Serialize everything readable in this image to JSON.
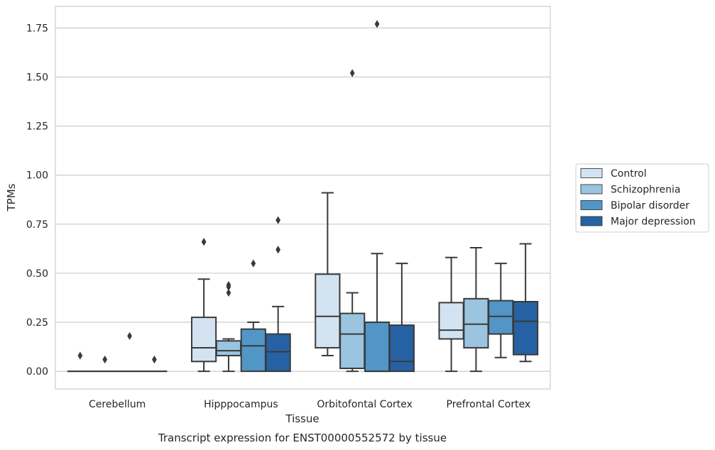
{
  "caption": "Transcript expression for ENST00000552572 by tissue",
  "chart_data": {
    "type": "box",
    "xlabel": "Tissue",
    "ylabel": "TPMs",
    "categories": [
      "Cerebellum",
      "Hipppocampus",
      "Orbitofontal Cortex",
      "Prefrontal Cortex"
    ],
    "ylim": [
      -0.09,
      1.86
    ],
    "yticks": [
      0.0,
      0.25,
      0.5,
      0.75,
      1.0,
      1.25,
      1.5,
      1.75
    ],
    "ytick_labels": [
      "0.00",
      "0.25",
      "0.50",
      "0.75",
      "1.00",
      "1.25",
      "1.50",
      "1.75"
    ],
    "grid": true,
    "legend_position": "right",
    "series": [
      {
        "name": "Control",
        "color": "#d4e3f1",
        "boxes": [
          {
            "q1": 0.0,
            "median": 0.0,
            "q3": 0.0,
            "whislo": 0.0,
            "whishi": 0.0,
            "fliers": [
              0.08
            ]
          },
          {
            "q1": 0.05,
            "median": 0.12,
            "q3": 0.275,
            "whislo": 0.0,
            "whishi": 0.47,
            "fliers": [
              0.66
            ]
          },
          {
            "q1": 0.12,
            "median": 0.28,
            "q3": 0.495,
            "whislo": 0.08,
            "whishi": 0.91,
            "fliers": []
          },
          {
            "q1": 0.165,
            "median": 0.21,
            "q3": 0.35,
            "whislo": 0.0,
            "whishi": 0.58,
            "fliers": []
          }
        ]
      },
      {
        "name": "Schizophrenia",
        "color": "#9ac4df",
        "boxes": [
          {
            "q1": 0.0,
            "median": 0.0,
            "q3": 0.0,
            "whislo": 0.0,
            "whishi": 0.0,
            "fliers": [
              0.06
            ]
          },
          {
            "q1": 0.08,
            "median": 0.105,
            "q3": 0.155,
            "whislo": 0.0,
            "whishi": 0.165,
            "fliers": [
              0.4,
              0.43,
              0.44
            ]
          },
          {
            "q1": 0.015,
            "median": 0.19,
            "q3": 0.295,
            "whislo": 0.0,
            "whishi": 0.4,
            "fliers": [
              1.52
            ]
          },
          {
            "q1": 0.12,
            "median": 0.24,
            "q3": 0.37,
            "whislo": 0.0,
            "whishi": 0.63,
            "fliers": []
          }
        ]
      },
      {
        "name": "Bipolar disorder",
        "color": "#5196c7",
        "boxes": [
          {
            "q1": 0.0,
            "median": 0.0,
            "q3": 0.0,
            "whislo": 0.0,
            "whishi": 0.0,
            "fliers": [
              0.18
            ]
          },
          {
            "q1": 0.0,
            "median": 0.13,
            "q3": 0.215,
            "whislo": 0.0,
            "whishi": 0.25,
            "fliers": [
              0.55
            ]
          },
          {
            "q1": 0.0,
            "median": 0.0,
            "q3": 0.25,
            "whislo": 0.0,
            "whishi": 0.6,
            "fliers": [
              1.77
            ]
          },
          {
            "q1": 0.19,
            "median": 0.28,
            "q3": 0.36,
            "whislo": 0.07,
            "whishi": 0.55,
            "fliers": []
          }
        ]
      },
      {
        "name": "Major depression",
        "color": "#2662a3",
        "boxes": [
          {
            "q1": 0.0,
            "median": 0.0,
            "q3": 0.0,
            "whislo": 0.0,
            "whishi": 0.0,
            "fliers": [
              0.06
            ]
          },
          {
            "q1": 0.0,
            "median": 0.1,
            "q3": 0.19,
            "whislo": 0.0,
            "whishi": 0.33,
            "fliers": [
              0.62,
              0.77
            ]
          },
          {
            "q1": 0.0,
            "median": 0.05,
            "q3": 0.235,
            "whislo": 0.0,
            "whishi": 0.55,
            "fliers": []
          },
          {
            "q1": 0.085,
            "median": 0.255,
            "q3": 0.355,
            "whislo": 0.05,
            "whishi": 0.65,
            "fliers": []
          }
        ]
      }
    ]
  }
}
